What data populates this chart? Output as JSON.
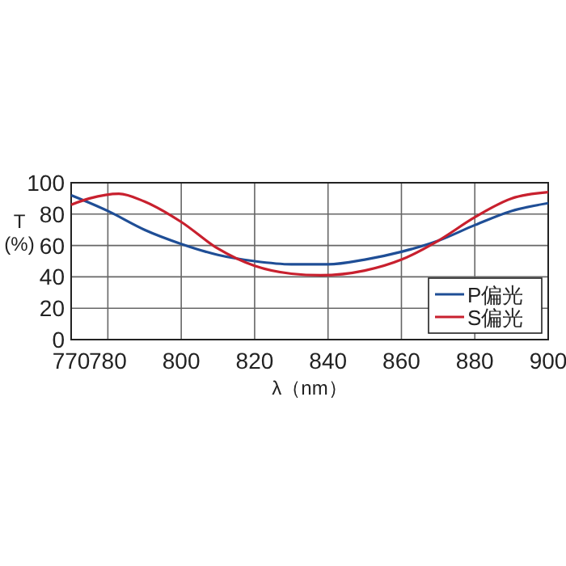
{
  "chart_data": {
    "type": "line",
    "xlabel": "λ（nm）",
    "ylabel": "T\n(%)",
    "xlim": [
      770,
      900
    ],
    "xticks": [
      770,
      780,
      800,
      820,
      840,
      860,
      880,
      900
    ],
    "ylim": [
      0,
      100
    ],
    "yticks": [
      0,
      20,
      40,
      60,
      80,
      100
    ],
    "grid": true,
    "legend": "bottom right",
    "line_style": "solid",
    "marker": "none",
    "series": [
      {
        "name": "P偏光",
        "color": "#1f4e96",
        "x": [
          770,
          780,
          790,
          800,
          810,
          820,
          830,
          840,
          850,
          860,
          870,
          880,
          890,
          900
        ],
        "values": [
          92,
          82,
          70,
          61,
          54,
          50,
          48,
          48,
          51,
          56,
          63,
          73,
          82,
          87
        ]
      },
      {
        "name": "S偏光",
        "color": "#c8202e",
        "x": [
          770,
          775,
          783,
          790,
          800,
          810,
          820,
          830,
          838,
          850,
          860,
          870,
          880,
          890,
          900
        ],
        "values": [
          86,
          90,
          93,
          88,
          75,
          58,
          47,
          42,
          41,
          44,
          51,
          63,
          78,
          90,
          94
        ]
      }
    ]
  }
}
